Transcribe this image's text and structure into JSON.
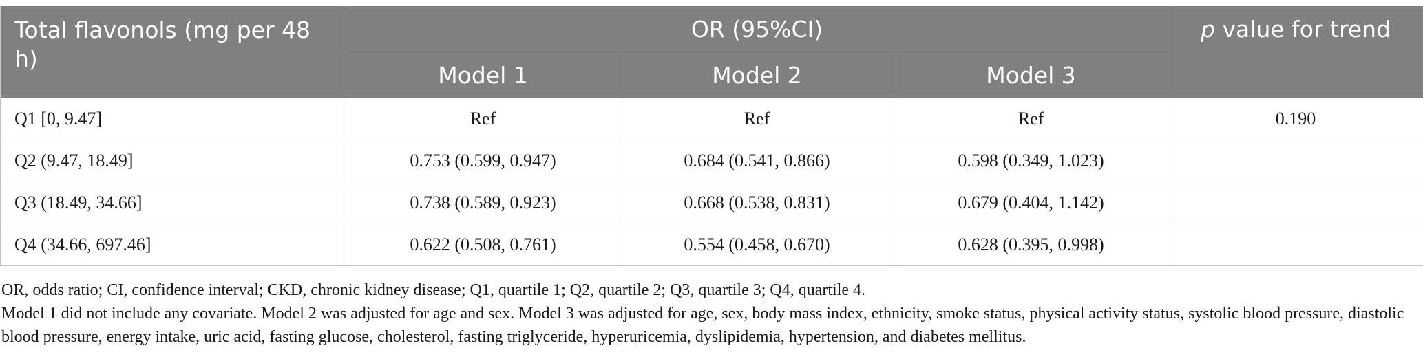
{
  "table": {
    "header": {
      "first_col": "Total flavonols (mg per 48 h)",
      "group": "OR (95%CI)",
      "p_trend_italic": "p",
      "p_trend_rest": " value for trend",
      "models": [
        "Model 1",
        "Model 2",
        "Model 3"
      ]
    },
    "rows": [
      {
        "label": "Q1 [0, 9.47]",
        "m1": "Ref",
        "m2": "Ref",
        "m3": "Ref",
        "p": "0.190"
      },
      {
        "label": "Q2 (9.47, 18.49]",
        "m1": "0.753 (0.599, 0.947)",
        "m2": "0.684 (0.541, 0.866)",
        "m3": "0.598 (0.349, 1.023)",
        "p": ""
      },
      {
        "label": "Q3 (18.49, 34.66]",
        "m1": "0.738 (0.589, 0.923)",
        "m2": "0.668 (0.538, 0.831)",
        "m3": "0.679 (0.404, 1.142)",
        "p": ""
      },
      {
        "label": "Q4 (34.66, 697.46]",
        "m1": "0.622 (0.508, 0.761)",
        "m2": "0.554 (0.458, 0.670)",
        "m3": "0.628 (0.395, 0.998)",
        "p": ""
      }
    ]
  },
  "footnotes": {
    "abbreviations": "OR, odds ratio; CI, confidence interval; CKD, chronic kidney disease; Q1, quartile 1; Q2, quartile 2; Q3, quartile 3; Q4, quartile 4.",
    "models": "Model 1 did not include any covariate. Model 2 was adjusted for age and sex. Model 3 was adjusted for age, sex, body mass index, ethnicity, smoke status, physical activity status, systolic blood pressure, diastolic blood pressure, energy intake, uric acid, fasting glucose, cholesterol, fasting triglyceride, hyperuricemia, dyslipidemia, hypertension, and diabetes mellitus."
  },
  "colors": {
    "header_bg": "#808080",
    "header_text": "#ffffff",
    "border": "#c0c0c0"
  }
}
